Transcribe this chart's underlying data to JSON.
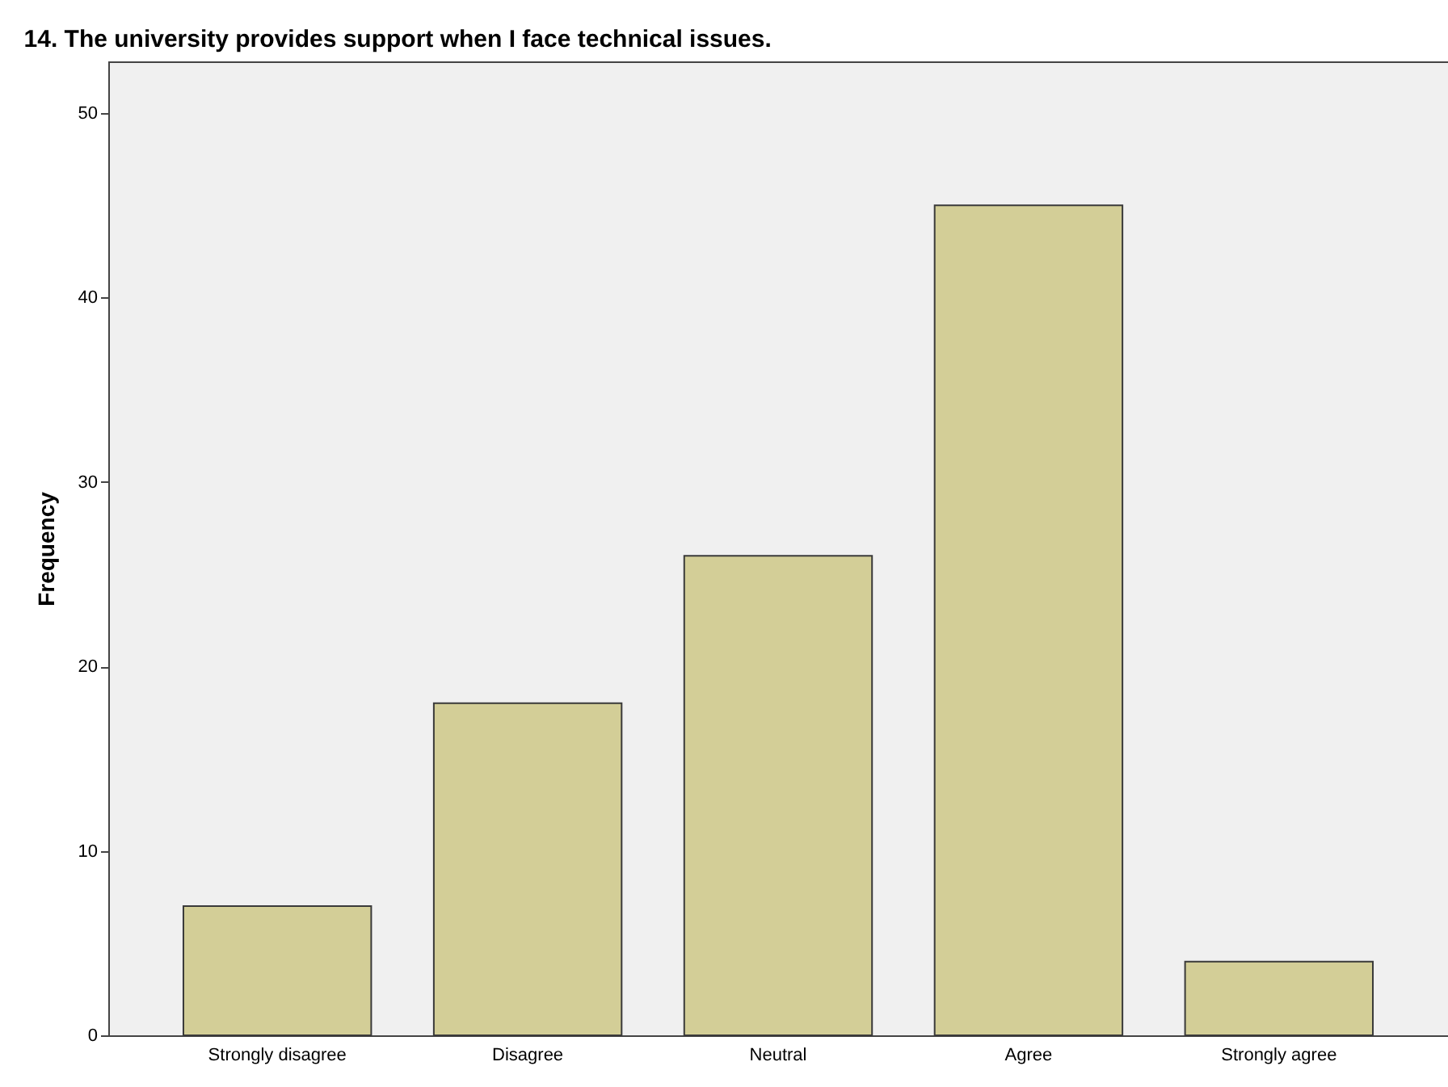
{
  "chart_data": {
    "type": "bar",
    "title": "14. The university provides support when I face technical issues.",
    "ylabel": "Frequency",
    "categories": [
      "Strongly disagree",
      "Disagree",
      "Neutral",
      "Agree",
      "Strongly agree"
    ],
    "values": [
      7,
      18,
      26,
      45,
      4
    ],
    "color": "#d3ce97",
    "ylim": [
      0,
      52.8
    ],
    "yticks": [
      0,
      10,
      20,
      30,
      40,
      50
    ],
    "grid": false
  }
}
